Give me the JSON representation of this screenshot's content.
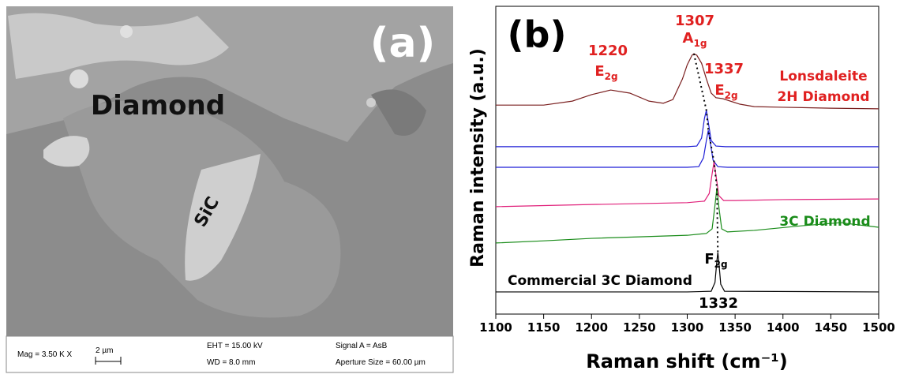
{
  "panel_a": {
    "label": "(a)",
    "annotations": [
      "Diamond",
      "SiC"
    ],
    "info": [
      "Mag =  3.50 K X",
      "2 µm",
      "EHT = 15.00 kV",
      "WD =  8.0 mm",
      "Signal A = AsB",
      "Aperture Size = 60.00 µm"
    ]
  },
  "chart_data": {
    "type": "line",
    "panel_label": "(b)",
    "x_label": "Raman shift (cm⁻¹)",
    "y_label": "Raman intensity (a.u.)",
    "xlim": [
      1100,
      1500
    ],
    "xticks": [
      1100,
      1150,
      1200,
      1250,
      1300,
      1350,
      1400,
      1450,
      1500
    ],
    "ylim": [
      0,
      100
    ],
    "series": [
      {
        "color": "#7a1f1f",
        "x": [
          1100,
          1150,
          1180,
          1200,
          1220,
          1240,
          1260,
          1275,
          1285,
          1295,
          1300,
          1305,
          1307,
          1310,
          1315,
          1320,
          1325,
          1330,
          1337,
          1345,
          1355,
          1370,
          1400,
          1450,
          1500
        ],
        "values": [
          67.9,
          67.9,
          69.2,
          71.3,
          72.8,
          71.8,
          69.2,
          68.5,
          69.7,
          76.4,
          81.0,
          84.1,
          84.6,
          84.1,
          81.5,
          76.4,
          71.8,
          70.3,
          70.0,
          69.2,
          68.2,
          67.4,
          67.2,
          66.9,
          66.7
        ]
      },
      {
        "color": "#1f1fd6",
        "x": [
          1100,
          1200,
          1300,
          1310,
          1315,
          1318,
          1320,
          1322,
          1325,
          1330,
          1340,
          1400,
          1500
        ],
        "values": [
          54.4,
          54.4,
          54.4,
          54.6,
          57.2,
          63.6,
          66.2,
          62.3,
          56.4,
          54.6,
          54.4,
          54.4,
          54.4
        ]
      },
      {
        "color": "#1f1fd6",
        "x": [
          1100,
          1200,
          1300,
          1312,
          1317,
          1320,
          1322,
          1324,
          1327,
          1332,
          1342,
          1400,
          1500
        ],
        "values": [
          47.7,
          47.7,
          47.7,
          47.9,
          50.8,
          56.4,
          59.7,
          55.9,
          50.0,
          47.9,
          47.7,
          47.7,
          47.7
        ]
      },
      {
        "color": "#e0207a",
        "x": [
          1100,
          1200,
          1300,
          1318,
          1323,
          1326,
          1328,
          1330,
          1333,
          1338,
          1350,
          1400,
          1500
        ],
        "values": [
          34.9,
          35.6,
          36.2,
          36.7,
          39.2,
          45.6,
          49.5,
          45.1,
          38.5,
          36.9,
          36.9,
          37.2,
          37.4
        ]
      },
      {
        "color": "#1a8c1a",
        "x": [
          1100,
          1150,
          1200,
          1250,
          1300,
          1320,
          1326,
          1329,
          1331,
          1333,
          1336,
          1342,
          1370,
          1420,
          1460,
          1500
        ],
        "values": [
          23.1,
          23.8,
          24.6,
          25.1,
          25.6,
          26.2,
          27.7,
          35.4,
          41.0,
          34.9,
          27.7,
          26.7,
          27.2,
          28.7,
          29.7,
          28.2
        ]
      },
      {
        "color": "#000000",
        "x": [
          1100,
          1300,
          1325,
          1329,
          1331,
          1332,
          1333,
          1335,
          1339,
          1500
        ],
        "values": [
          7.2,
          7.2,
          7.4,
          10.3,
          17.4,
          20.0,
          16.9,
          9.7,
          7.4,
          7.2
        ]
      }
    ],
    "peak_labels": [
      {
        "shift": "1220",
        "mode": "E",
        "sub": "2g"
      },
      {
        "shift": "1307",
        "mode": "A",
        "sub": "1g"
      },
      {
        "shift": "1337",
        "mode": "E",
        "sub": "2g"
      },
      {
        "shift": "1332",
        "mode": "F",
        "sub": "2g"
      }
    ],
    "series_labels": [
      "Lonsdaleite",
      "2H Diamond",
      "3C Diamond",
      "Commercial 3C Diamond"
    ]
  }
}
